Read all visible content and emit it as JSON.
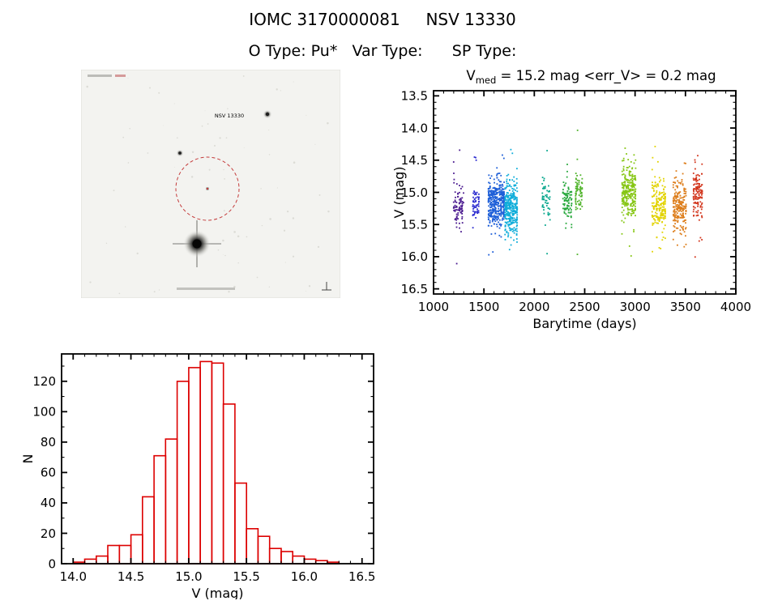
{
  "header": {
    "title": "IOMC 3170000081     NSV 13330",
    "subtitle": "O Type: Pu*   Var Type:      SP Type:"
  },
  "finder": {
    "source_label": "NSV 13330",
    "circle_color": "#c43b3b"
  },
  "chart_data": [
    {
      "id": "lightcurve",
      "type": "scatter",
      "title_parts": [
        {
          "text": "V"
        },
        {
          "text": "med",
          "sub": true
        },
        {
          "text": " = 15.2 mag <err_V> = 0.2 mag"
        }
      ],
      "v_median_mag": 15.2,
      "v_err_mag": 0.2,
      "xlabel": "Barytime (days)",
      "ylabel": "V (mag)",
      "xlim": [
        1000,
        4000
      ],
      "ylim_top": 13.42,
      "ylim_bottom": 16.58,
      "xticks": [
        1000,
        1500,
        2000,
        2500,
        3000,
        3500,
        4000
      ],
      "yticks": [
        13.5,
        14.0,
        14.5,
        15.0,
        15.5,
        16.0,
        16.5
      ],
      "x_minor_step": 100,
      "y_minor_step": 0.1,
      "clusters": [
        {
          "x": [
            1195,
            1305
          ],
          "v": 15.2,
          "s": 0.24,
          "n": 85,
          "color": "#4a1a8f"
        },
        {
          "x": [
            1385,
            1455
          ],
          "v": 15.15,
          "s": 0.2,
          "n": 55,
          "color": "#2b2bcf"
        },
        {
          "x": [
            1540,
            1705
          ],
          "v": 15.15,
          "s": 0.3,
          "n": 380,
          "color": "#1e5fd8"
        },
        {
          "x": [
            1705,
            1835
          ],
          "v": 15.25,
          "s": 0.36,
          "n": 320,
          "color": "#0fadda"
        },
        {
          "x": [
            2075,
            2160
          ],
          "v": 15.1,
          "s": 0.3,
          "n": 55,
          "color": "#0aa88e"
        },
        {
          "x": [
            2280,
            2375
          ],
          "v": 15.15,
          "s": 0.26,
          "n": 95,
          "color": "#27a83c"
        },
        {
          "x": [
            2405,
            2480
          ],
          "v": 15.0,
          "s": 0.24,
          "n": 70,
          "color": "#4fb32a"
        },
        {
          "x": [
            2865,
            3010
          ],
          "v": 15.0,
          "s": 0.32,
          "n": 280,
          "color": "#86c614"
        },
        {
          "x": [
            3165,
            3305
          ],
          "v": 15.2,
          "s": 0.32,
          "n": 210,
          "color": "#e2d300"
        },
        {
          "x": [
            3375,
            3510
          ],
          "v": 15.2,
          "s": 0.3,
          "n": 210,
          "color": "#dd7d1a"
        },
        {
          "x": [
            3575,
            3670
          ],
          "v": 15.0,
          "s": 0.28,
          "n": 130,
          "color": "#d2351c"
        }
      ]
    },
    {
      "id": "histogram",
      "type": "bar",
      "xlabel": "V (mag)",
      "ylabel": "N",
      "bin_start": 14.0,
      "bin_width": 0.1,
      "values": [
        1,
        3,
        5,
        12,
        12,
        19,
        44,
        71,
        82,
        120,
        129,
        133,
        132,
        105,
        53,
        23,
        18,
        10,
        8,
        5,
        3,
        2,
        1
      ],
      "xlim": [
        13.9,
        16.6
      ],
      "ylim": [
        0,
        138
      ],
      "xticks": [
        14.0,
        14.5,
        15.0,
        15.5,
        16.0,
        16.5
      ],
      "yticks": [
        0,
        20,
        40,
        60,
        80,
        100,
        120
      ],
      "x_minor_step": 0.1,
      "y_minor_step": 10,
      "bar_color": "#dd0000"
    }
  ]
}
